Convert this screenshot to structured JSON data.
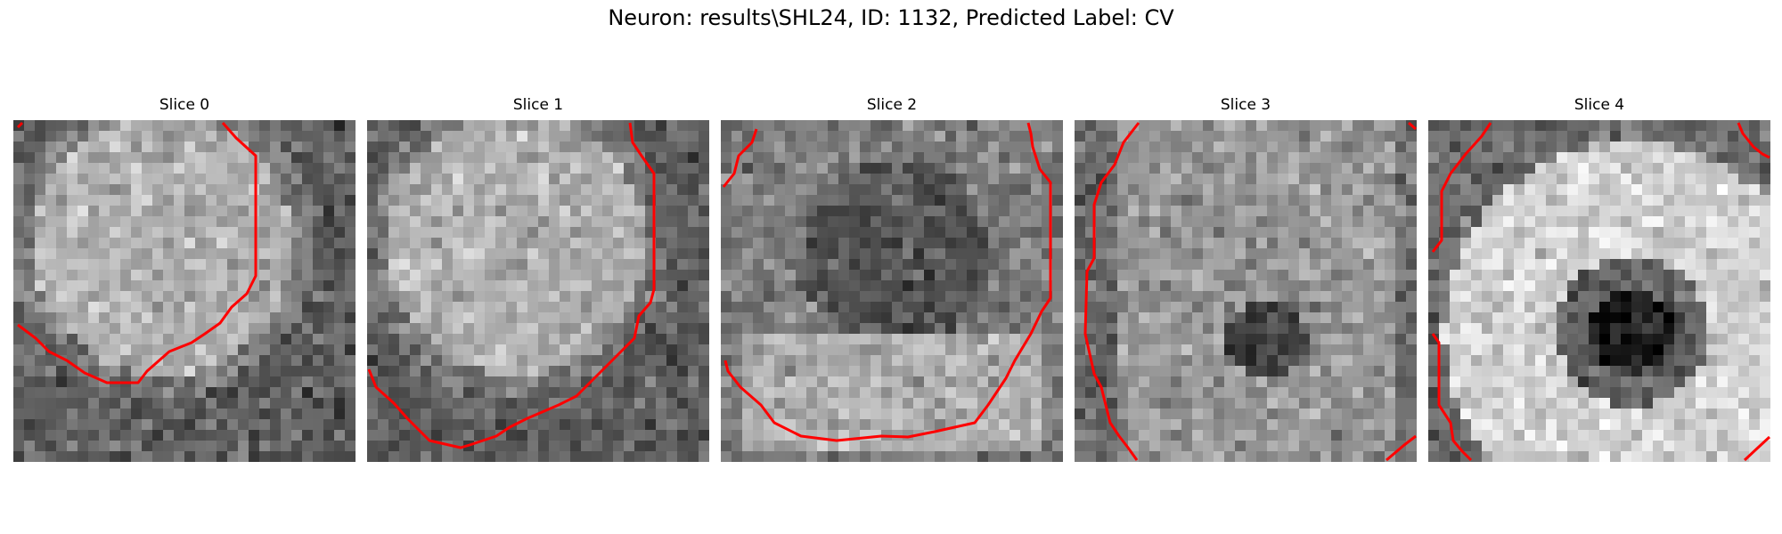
{
  "figure": {
    "title": "Neuron: results\\SHL24, ID: 1132, Predicted Label: CV"
  },
  "slices": [
    {
      "title": "Slice 0",
      "seed": 11,
      "blob": "bright-disc"
    },
    {
      "title": "Slice 1",
      "seed": 23,
      "blob": "bright-disc"
    },
    {
      "title": "Slice 2",
      "seed": 37,
      "blob": "dark-center-bright-bottom"
    },
    {
      "title": "Slice 3",
      "seed": 41,
      "blob": "dark-spot"
    },
    {
      "title": "Slice 4",
      "seed": 53,
      "blob": "ring"
    }
  ],
  "colors": {
    "contour": "#ff0000",
    "background": "#ffffff"
  }
}
